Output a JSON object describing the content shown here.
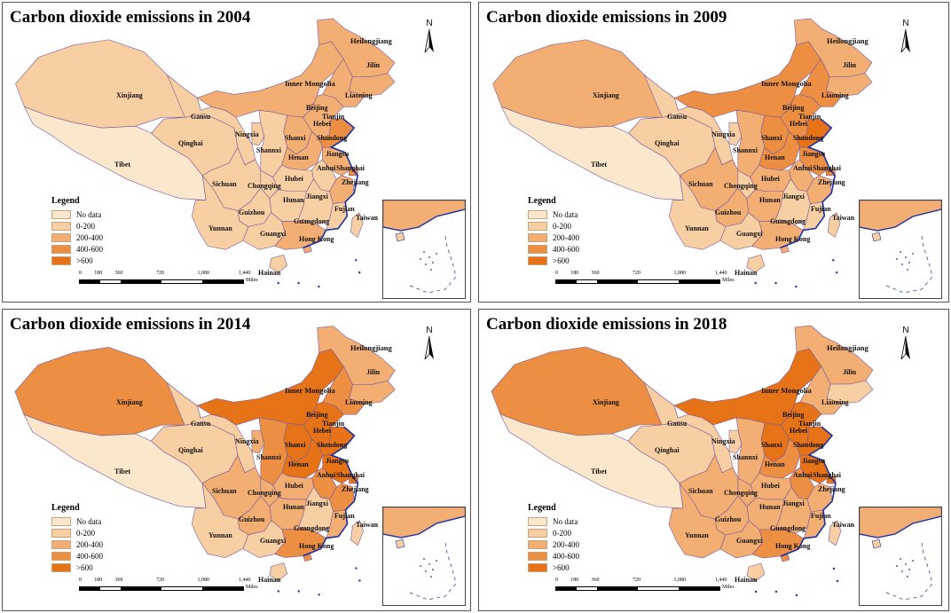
{
  "panels": [
    {
      "title": "Carbon dioxide emissions in 2004",
      "levels": {
        "Xinjiang": 1,
        "Tibet": 0,
        "Qinghai": 1,
        "Gansu": 1,
        "InnerMongolia": 2,
        "Heilongjiang": 2,
        "Jilin": 2,
        "Liaoning": 2,
        "Hebei": 2,
        "Shanxi": 2,
        "Shandong": 3,
        "Henan": 2,
        "Jiangsu": 2,
        "Shaanxi": 1,
        "Ningxia": 1,
        "Sichuan": 1,
        "Chongqing": 1,
        "Hubei": 1,
        "Hunan": 1,
        "Anhui": 1,
        "Zhejiang": 2,
        "Jiangxi": 1,
        "Fujian": 1,
        "Guangdong": 2,
        "Guangxi": 1,
        "Guizhou": 1,
        "Yunnan": 1,
        "Hainan": 1,
        "Taiwan": 1
      }
    },
    {
      "title": "Carbon dioxide emissions in 2009",
      "levels": {
        "Xinjiang": 2,
        "Tibet": 0,
        "Qinghai": 1,
        "Gansu": 1,
        "InnerMongolia": 3,
        "Heilongjiang": 2,
        "Jilin": 2,
        "Liaoning": 3,
        "Hebei": 3,
        "Shanxi": 3,
        "Shandong": 4,
        "Henan": 3,
        "Jiangsu": 3,
        "Shaanxi": 2,
        "Ningxia": 1,
        "Sichuan": 2,
        "Chongqing": 1,
        "Hubei": 2,
        "Hunan": 2,
        "Anhui": 2,
        "Zhejiang": 2,
        "Jiangxi": 1,
        "Fujian": 1,
        "Guangdong": 2,
        "Guangxi": 1,
        "Guizhou": 2,
        "Yunnan": 1,
        "Hainan": 1,
        "Taiwan": 1
      }
    },
    {
      "title": "Carbon dioxide emissions in 2014",
      "levels": {
        "Xinjiang": 3,
        "Tibet": 0,
        "Qinghai": 1,
        "Gansu": 1,
        "InnerMongolia": 4,
        "Heilongjiang": 2,
        "Jilin": 2,
        "Liaoning": 3,
        "Hebei": 4,
        "Shanxi": 4,
        "Shandong": 4,
        "Henan": 4,
        "Jiangsu": 4,
        "Shaanxi": 3,
        "Ningxia": 2,
        "Sichuan": 2,
        "Chongqing": 2,
        "Hubei": 2,
        "Hunan": 2,
        "Anhui": 3,
        "Zhejiang": 3,
        "Jiangxi": 1,
        "Fujian": 2,
        "Guangdong": 3,
        "Guangxi": 1,
        "Guizhou": 2,
        "Yunnan": 1,
        "Hainan": 1,
        "Taiwan": 1
      }
    },
    {
      "title": "Carbon dioxide emissions in 2018",
      "levels": {
        "Xinjiang": 3,
        "Tibet": 0,
        "Qinghai": 1,
        "Gansu": 1,
        "InnerMongolia": 4,
        "Heilongjiang": 2,
        "Jilin": 1,
        "Liaoning": 2,
        "Hebei": 4,
        "Shanxi": 4,
        "Shandong": 4,
        "Henan": 3,
        "Jiangsu": 4,
        "Shaanxi": 2,
        "Ningxia": 1,
        "Sichuan": 2,
        "Chongqing": 2,
        "Hubei": 2,
        "Hunan": 2,
        "Anhui": 3,
        "Zhejiang": 2,
        "Jiangxi": 2,
        "Fujian": 2,
        "Guangdong": 3,
        "Guangxi": 2,
        "Guizhou": 2,
        "Yunnan": 2,
        "Hainan": 1,
        "Taiwan": 1
      }
    }
  ],
  "province_labels": {
    "Xinjiang": "Xinjiang",
    "Tibet": "Tibet",
    "Qinghai": "Qinghai",
    "Gansu": "Gansu",
    "InnerMongolia": "Inner Mongolia",
    "Heilongjiang": "Heilongjiang",
    "Jilin": "Jilin",
    "Liaoning": "Liaoning",
    "Beijing": "Beijing",
    "Tianjin": "Tianjin",
    "Hebei": "Hebei",
    "Shanxi": "Shanxi",
    "Shandong": "Shandong",
    "Ningxia": "Ningxia",
    "Shaanxi": "Shannxi",
    "Henan": "Henan",
    "Jiangsu": "Jiangsu",
    "Anhui": "Anhui",
    "Shanghai": "Shanghai",
    "Sichuan": "Sichuan",
    "Chongqing": "Chongqing",
    "Hubei": "Hubei",
    "Zhejiang": "Zhejiang",
    "Hunan": "Hunan",
    "Jiangxi": "Jiangxi",
    "Fujian": "Fujian",
    "Guizhou": "Guizhou",
    "Yunnan": "Yunnan",
    "Guangxi": "Guangxi",
    "Guangdong": "Guangdong",
    "HongKong": "Hong Kong",
    "Taiwan": "Taiwan",
    "Hainan": "Hainan"
  },
  "legend": {
    "title": "Legend",
    "items": [
      {
        "label": "No data",
        "color": "#fbe7cc"
      },
      {
        "label": "0-200",
        "color": "#f8cfa2"
      },
      {
        "label": "200-400",
        "color": "#f2ae73"
      },
      {
        "label": "400-600",
        "color": "#ec8f43"
      },
      {
        "label": ">600",
        "color": "#e77318"
      }
    ]
  },
  "north_label": "N",
  "scale": {
    "ticks": [
      "0",
      "180",
      "360",
      "720",
      "1,080",
      "1,440"
    ],
    "unit": "Miles"
  },
  "colors": {
    "border": "#7a5a9a",
    "coast": "#1a2ea8"
  }
}
